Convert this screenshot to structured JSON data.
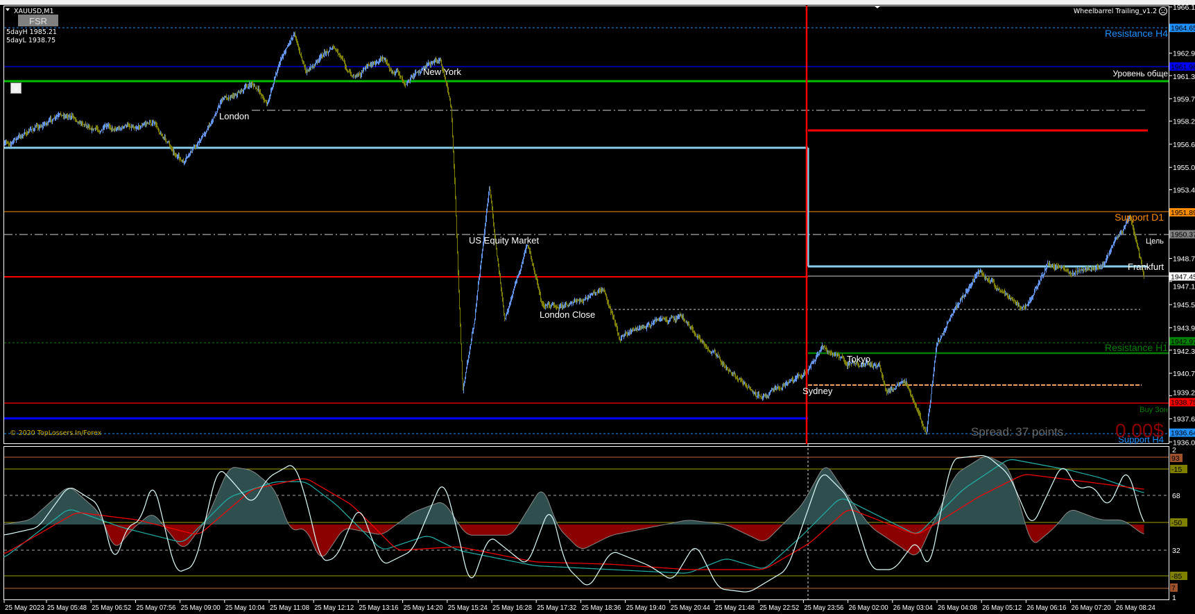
{
  "window": {
    "symbol_title": "XAUUSD,M1",
    "fsr_button": "FSR",
    "v_button": "v",
    "five_day_high": "5dayH 1985.21",
    "five_day_low": "5dayL 1938.75",
    "indicator_name": "Wheelbarrel Trailing_v1.2",
    "indicator_icon": "sad-face-icon",
    "copyright": "© 2020 TopLossers.In/Forex"
  },
  "sessions": {
    "london": "London",
    "new_york": "New York",
    "us_equity": "US Equity Market",
    "london_close": "London Close",
    "tokyo": "Tokyo",
    "sydney": "Sydney",
    "frankfurt": "Frankfurt"
  },
  "levels": {
    "resistance_h4": "Resistance H4",
    "common_level": "Уровень обще",
    "support_d1": "Support D1",
    "target": "Цель",
    "resistance_h1": "Resistance H1",
    "buy_zone": "Buy Зон",
    "support_h4": "Support H4"
  },
  "info": {
    "spread": "Spread: 37 points.",
    "profit": "0.00$"
  },
  "price_axis": [
    "1966.10",
    "1962.90",
    "1961.35",
    "1959.75",
    "1958.20",
    "1956.60",
    "1955.00",
    "1953.45",
    "1948.70",
    "1947.10",
    "1945.50",
    "1943.90",
    "1942.35",
    "1940.75",
    "1939.20",
    "1937.60",
    "1936.00"
  ],
  "price_tags": [
    {
      "value": "1964.65",
      "color": "#1e90ff",
      "text": "#000000"
    },
    {
      "value": "1961.98",
      "color": "#0000ff",
      "text": "#000000"
    },
    {
      "value": "1951.89",
      "color": "#ff8c00",
      "text": "#000000"
    },
    {
      "value": "1950.37",
      "color": "#808080",
      "text": "#000000"
    },
    {
      "value": "1947.45",
      "color": "#ffffff",
      "text": "#000000"
    },
    {
      "value": "1942.97",
      "color": "#008000",
      "text": "#000000"
    },
    {
      "value": "1938.75",
      "color": "#ff0000",
      "text": "#000000"
    },
    {
      "value": "1936.64",
      "color": "#1e90ff",
      "text": "#000000"
    }
  ],
  "indicator_axis": {
    "top": "2",
    "bottom": "1",
    "tags": [
      {
        "value": "93",
        "color": "#a0522d"
      },
      {
        "value": "-15",
        "color": "#808000"
      },
      {
        "value": "-50",
        "color": "#808000"
      },
      {
        "value": "-85",
        "color": "#808000"
      },
      {
        "value": "7",
        "color": "#a0522d"
      }
    ],
    "plain": [
      "68",
      "32"
    ]
  },
  "time_axis": [
    "25 May 2023",
    "25 May 05:48",
    "25 May 06:52",
    "25 May 07:56",
    "25 May 09:00",
    "25 May 10:04",
    "25 May 11:08",
    "25 May 12:12",
    "25 May 13:16",
    "25 May 14:20",
    "25 May 15:24",
    "25 May 16:28",
    "25 May 17:32",
    "25 May 18:36",
    "25 May 19:40",
    "25 May 20:44",
    "25 May 21:48",
    "25 May 22:52",
    "25 May 23:56",
    "26 May 02:00",
    "26 May 03:04",
    "26 May 04:08",
    "26 May 05:12",
    "26 May 06:16",
    "26 May 07:20",
    "26 May 08:24"
  ],
  "colors": {
    "bull": "#6495ed",
    "bear": "#808000",
    "background": "#000000",
    "histogram_up": "#2f4f4f",
    "histogram_down": "#8b0000"
  }
}
